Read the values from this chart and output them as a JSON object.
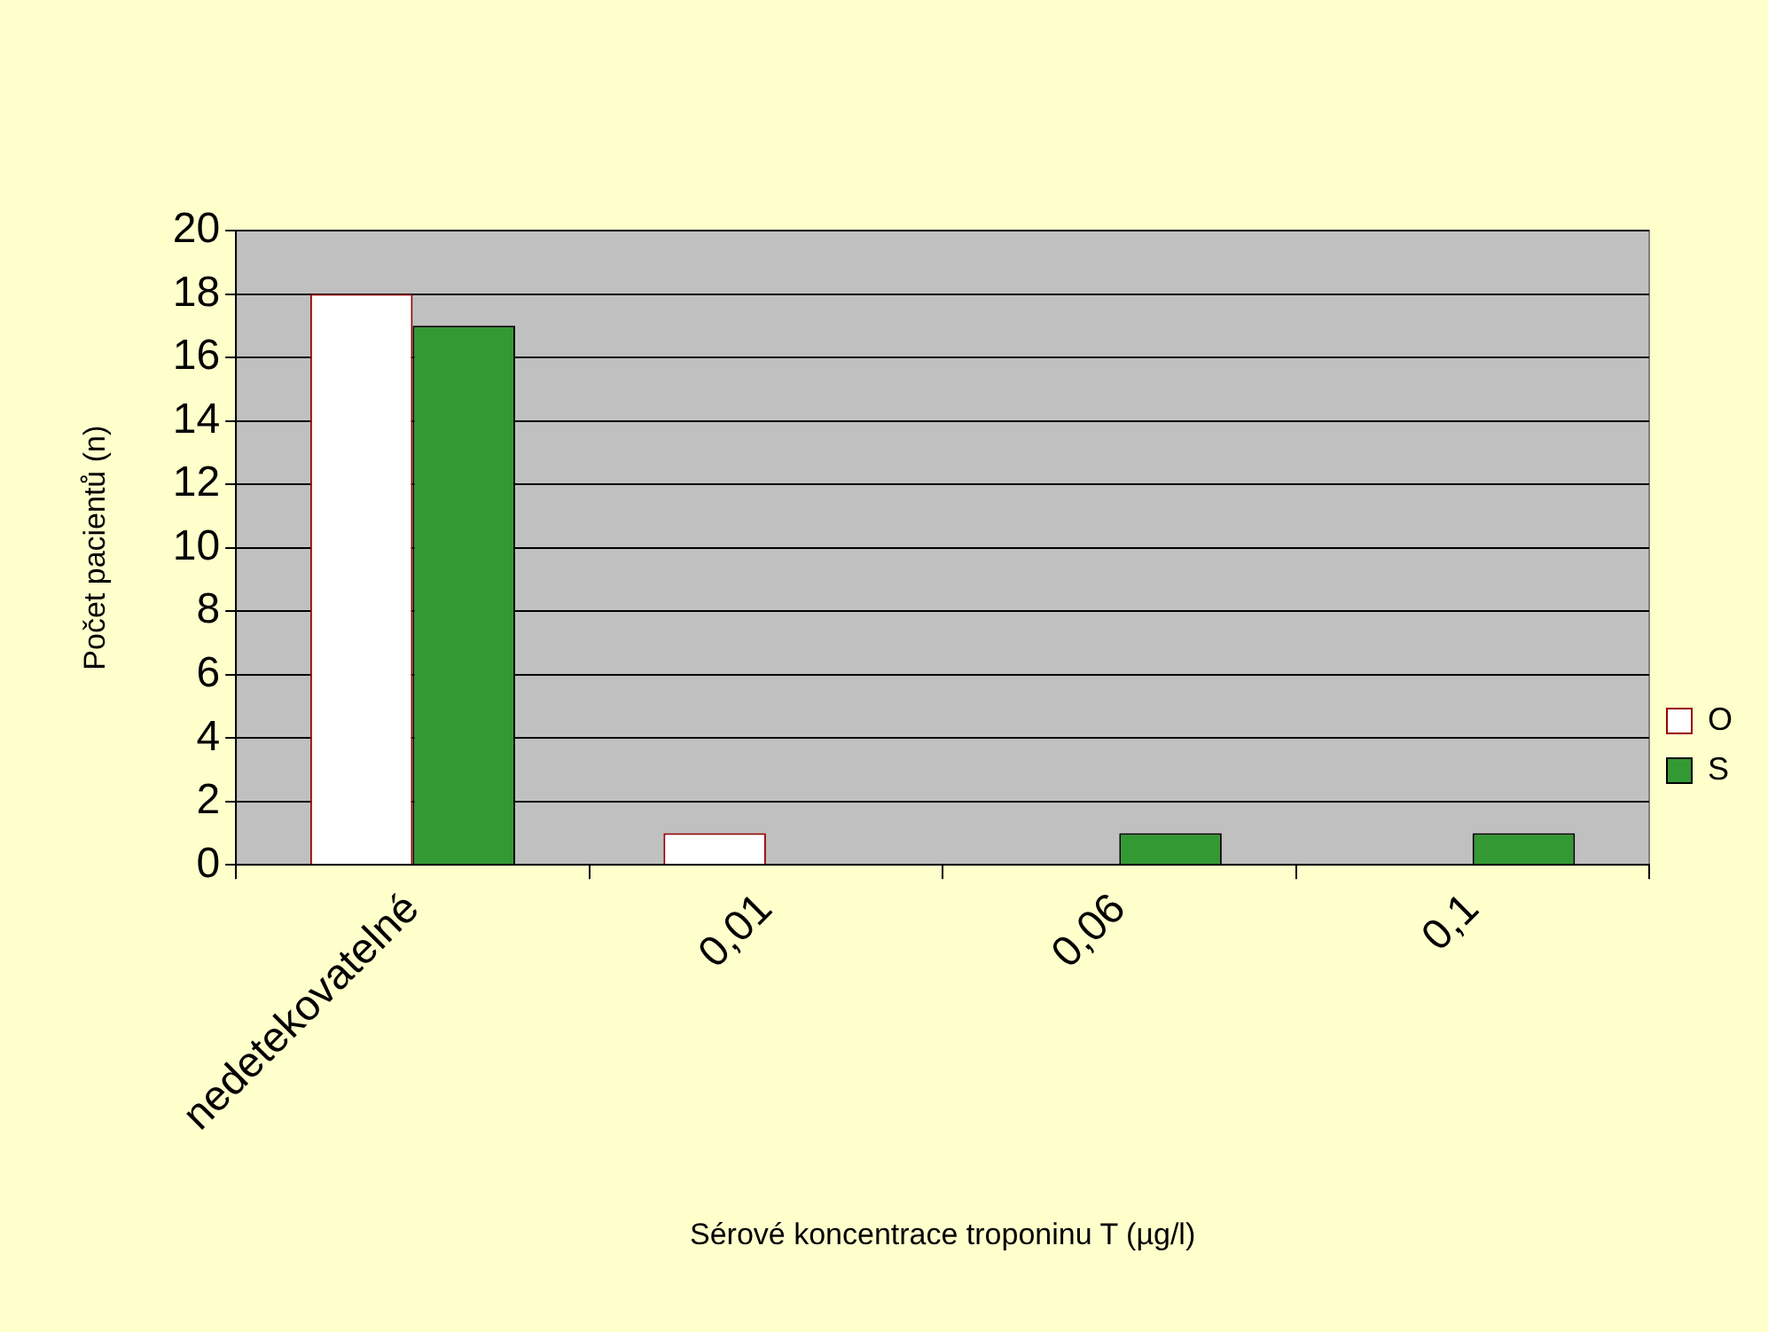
{
  "chart_data": {
    "type": "bar",
    "categories": [
      "nedetekovatelné",
      "0,01",
      "0,06",
      "0,1"
    ],
    "series": [
      {
        "name": "O",
        "color": "#ffffff",
        "values": [
          18,
          1,
          0,
          0
        ]
      },
      {
        "name": "S",
        "color": "#339933",
        "values": [
          17,
          0,
          1,
          1
        ]
      }
    ],
    "xlabel": "Sérové koncentrace troponinu T (µg/l)",
    "ylabel": "Počet pacientů (n)",
    "ylim": [
      0,
      20
    ],
    "yticks": [
      0,
      2,
      4,
      6,
      8,
      10,
      12,
      14,
      16,
      18,
      20
    ],
    "grid": "y",
    "legend": "right"
  }
}
